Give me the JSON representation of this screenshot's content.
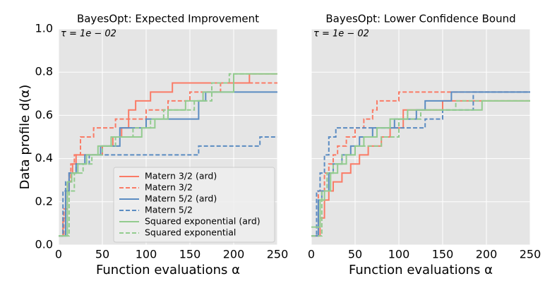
{
  "chart_data": [
    {
      "type": "line",
      "step": "post",
      "title": "BayesOpt: Expected Improvement",
      "annotation": "τ = 1e − 02",
      "xlabel": "Function evaluations α",
      "ylabel": "Data profile d(α)",
      "xlim": [
        0,
        250
      ],
      "xticks": [
        0,
        50,
        100,
        150,
        200,
        250
      ],
      "ylim": [
        0,
        1
      ],
      "yticks": [
        {
          "value": 0,
          "label": "0.0"
        },
        0.2,
        0.4,
        0.6,
        0.8,
        {
          "value": 1,
          "label": "1.0"
        }
      ],
      "show_ytick_labels": true,
      "grid": true,
      "legend": "lower right",
      "series": [
        {
          "name": "Matern 3/2 (ard)",
          "color": "#fa7b66",
          "dashed": false,
          "x": [
            0,
            5,
            8,
            12,
            16,
            20,
            50,
            62,
            72,
            80,
            88,
            105,
            130,
            218,
            250
          ],
          "values": [
            0.042,
            0.125,
            0.25,
            0.333,
            0.375,
            0.417,
            0.458,
            0.5,
            0.542,
            0.625,
            0.667,
            0.708,
            0.75,
            0.792,
            0.792
          ]
        },
        {
          "name": "Matern 3/2",
          "color": "#fa7b66",
          "dashed": true,
          "x": [
            0,
            6,
            10,
            14,
            18,
            25,
            40,
            65,
            100,
            125,
            150,
            185,
            250
          ],
          "values": [
            0.042,
            0.167,
            0.292,
            0.375,
            0.417,
            0.5,
            0.542,
            0.583,
            0.625,
            0.667,
            0.708,
            0.75,
            0.75
          ]
        },
        {
          "name": "Matern 5/2 (ard)",
          "color": "#5b8cc2",
          "dashed": false,
          "x": [
            0,
            8,
            12,
            20,
            30,
            48,
            70,
            100,
            160,
            168,
            250
          ],
          "values": [
            0.042,
            0.25,
            0.333,
            0.375,
            0.417,
            0.458,
            0.542,
            0.583,
            0.667,
            0.708,
            0.708
          ]
        },
        {
          "name": "Matern 5/2",
          "color": "#5b8cc2",
          "dashed": true,
          "x": [
            0,
            5,
            8,
            12,
            20,
            35,
            160,
            230,
            250
          ],
          "values": [
            0.042,
            0.25,
            0.292,
            0.333,
            0.375,
            0.417,
            0.458,
            0.5,
            0.5
          ]
        },
        {
          "name": "Squared exponential (ard)",
          "color": "#93cc8f",
          "dashed": false,
          "x": [
            0,
            10,
            15,
            22,
            32,
            45,
            60,
            95,
            110,
            125,
            145,
            165,
            200,
            250
          ],
          "values": [
            0.042,
            0.292,
            0.333,
            0.375,
            0.417,
            0.458,
            0.5,
            0.542,
            0.583,
            0.625,
            0.667,
            0.708,
            0.792,
            0.792
          ]
        },
        {
          "name": "Squared exponential",
          "color": "#93cc8f",
          "dashed": true,
          "x": [
            0,
            12,
            18,
            28,
            38,
            50,
            65,
            85,
            105,
            120,
            155,
            175,
            195,
            250
          ],
          "values": [
            0.042,
            0.25,
            0.333,
            0.375,
            0.417,
            0.458,
            0.5,
            0.542,
            0.583,
            0.625,
            0.667,
            0.75,
            0.792,
            0.792
          ]
        }
      ]
    },
    {
      "type": "line",
      "step": "post",
      "title": "BayesOpt: Lower Confidence Bound",
      "annotation": "τ = 1e − 02",
      "xlabel": "Function evaluations α",
      "xlim": [
        0,
        250
      ],
      "xticks": [
        0,
        50,
        100,
        150,
        200,
        250
      ],
      "ylim": [
        0,
        1
      ],
      "yticks": [
        0,
        0.2,
        0.4,
        0.6,
        0.8,
        1
      ],
      "show_ytick_labels": false,
      "grid": true,
      "series": [
        {
          "color": "#fa7b66",
          "dashed": false,
          "x": [
            0,
            10,
            15,
            20,
            25,
            35,
            45,
            55,
            65,
            80,
            90,
            105,
            150,
            250
          ],
          "values": [
            0.042,
            0.125,
            0.208,
            0.25,
            0.292,
            0.333,
            0.375,
            0.417,
            0.458,
            0.5,
            0.542,
            0.625,
            0.667,
            0.667
          ]
        },
        {
          "color": "#fa7b66",
          "dashed": true,
          "x": [
            0,
            8,
            15,
            20,
            25,
            30,
            40,
            50,
            60,
            70,
            75,
            100,
            250
          ],
          "values": [
            0.042,
            0.25,
            0.333,
            0.375,
            0.417,
            0.458,
            0.5,
            0.542,
            0.583,
            0.625,
            0.667,
            0.708,
            0.708
          ]
        },
        {
          "color": "#5b8cc2",
          "dashed": false,
          "x": [
            0,
            8,
            12,
            20,
            25,
            35,
            45,
            55,
            70,
            95,
            120,
            130,
            160,
            250
          ],
          "values": [
            0.042,
            0.208,
            0.25,
            0.333,
            0.375,
            0.417,
            0.458,
            0.5,
            0.542,
            0.583,
            0.625,
            0.667,
            0.708,
            0.708
          ]
        },
        {
          "color": "#5b8cc2",
          "dashed": true,
          "x": [
            0,
            6,
            10,
            15,
            20,
            28,
            130,
            150,
            185,
            250
          ],
          "values": [
            0.042,
            0.25,
            0.333,
            0.417,
            0.5,
            0.542,
            0.583,
            0.625,
            0.708,
            0.708
          ]
        },
        {
          "color": "#93cc8f",
          "dashed": false,
          "x": [
            0,
            10,
            15,
            22,
            30,
            40,
            50,
            60,
            75,
            90,
            110,
            195,
            250
          ],
          "values": [
            0.083,
            0.208,
            0.25,
            0.333,
            0.375,
            0.417,
            0.458,
            0.5,
            0.542,
            0.583,
            0.625,
            0.667,
            0.667
          ]
        },
        {
          "color": "#93cc8f",
          "dashed": true,
          "x": [
            0,
            12,
            18,
            25,
            35,
            50,
            80,
            100,
            125,
            165,
            250
          ],
          "values": [
            0.042,
            0.25,
            0.333,
            0.375,
            0.417,
            0.458,
            0.5,
            0.583,
            0.625,
            0.667,
            0.667
          ]
        }
      ]
    }
  ]
}
